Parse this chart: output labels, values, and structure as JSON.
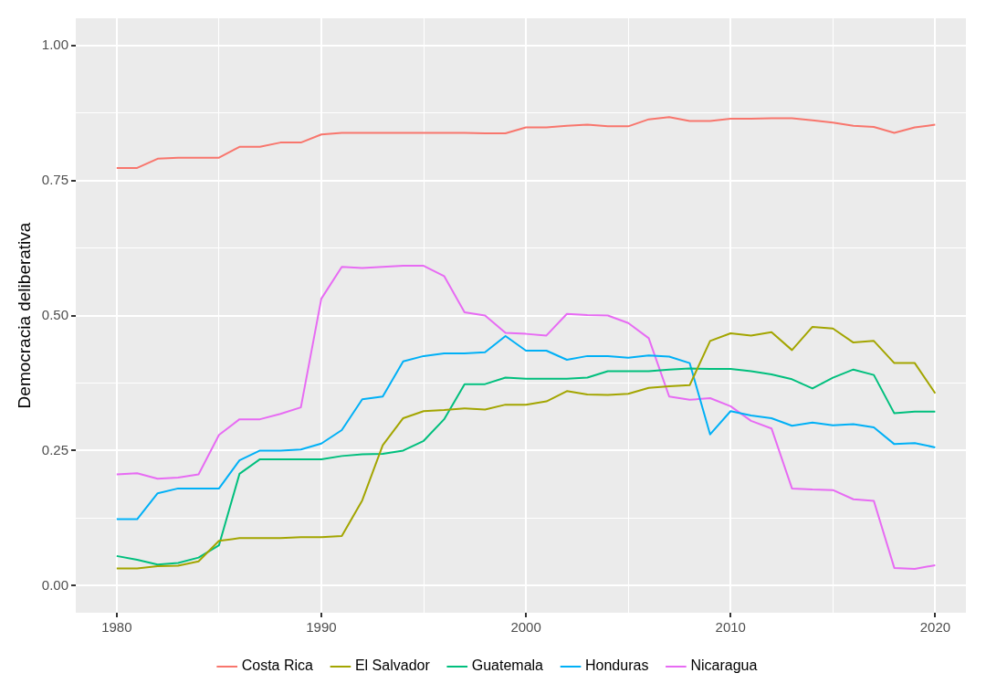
{
  "chart_data": {
    "type": "line",
    "ylabel": "Democracia deliberativa",
    "x": [
      1980,
      1981,
      1982,
      1983,
      1984,
      1985,
      1986,
      1987,
      1988,
      1989,
      1990,
      1991,
      1992,
      1993,
      1994,
      1995,
      1996,
      1997,
      1998,
      1999,
      2000,
      2001,
      2002,
      2003,
      2004,
      2005,
      2006,
      2007,
      2008,
      2009,
      2010,
      2011,
      2012,
      2013,
      2014,
      2015,
      2016,
      2017,
      2018,
      2019,
      2020
    ],
    "xlim": [
      1978,
      2021.5
    ],
    "xticks": [
      1980,
      {
        "value": 1985,
        "label": null
      },
      1990,
      {
        "value": 1995,
        "label": null
      },
      2000,
      {
        "value": 2005,
        "label": null
      },
      2010,
      {
        "value": 2015,
        "label": null
      },
      2020
    ],
    "ylim": [
      -0.05,
      1.05
    ],
    "yticks": [
      {
        "value": 0,
        "label": "0.00"
      },
      {
        "value": 0.125,
        "label": null
      },
      {
        "value": 0.25,
        "label": "0.25"
      },
      {
        "value": 0.375,
        "label": null
      },
      {
        "value": 0.5,
        "label": "0.50"
      },
      {
        "value": 0.625,
        "label": null
      },
      {
        "value": 0.75,
        "label": "0.75"
      },
      {
        "value": 0.875,
        "label": null
      },
      {
        "value": 1,
        "label": "1.00"
      }
    ],
    "grid": true,
    "legend": "bottom",
    "marker": "none",
    "line_style": "solid",
    "series": [
      {
        "name": "Costa Rica",
        "color": "#f8766d",
        "values": [
          0.773,
          0.773,
          0.79,
          0.792,
          0.792,
          0.792,
          0.812,
          0.812,
          0.82,
          0.82,
          0.835,
          0.838,
          0.838,
          0.838,
          0.838,
          0.838,
          0.838,
          0.838,
          0.837,
          0.837,
          0.848,
          0.848,
          0.851,
          0.853,
          0.85,
          0.85,
          0.863,
          0.867,
          0.86,
          0.86,
          0.864,
          0.864,
          0.865,
          0.865,
          0.861,
          0.857,
          0.851,
          0.849,
          0.838,
          0.848,
          0.853
        ]
      },
      {
        "name": "El Salvador",
        "color": "#a3a500",
        "values": [
          0.032,
          0.032,
          0.036,
          0.037,
          0.045,
          0.083,
          0.088,
          0.088,
          0.088,
          0.09,
          0.09,
          0.092,
          0.158,
          0.26,
          0.31,
          0.323,
          0.325,
          0.328,
          0.326,
          0.335,
          0.335,
          0.341,
          0.36,
          0.354,
          0.353,
          0.355,
          0.366,
          0.369,
          0.371,
          0.453,
          0.467,
          0.463,
          0.469,
          0.436,
          0.479,
          0.476,
          0.45,
          0.453,
          0.412,
          0.412,
          0.356
        ]
      },
      {
        "name": "Guatemala",
        "color": "#00bf7d",
        "values": [
          0.055,
          0.048,
          0.039,
          0.042,
          0.052,
          0.075,
          0.207,
          0.234,
          0.234,
          0.234,
          0.234,
          0.24,
          0.243,
          0.244,
          0.25,
          0.268,
          0.308,
          0.373,
          0.373,
          0.385,
          0.383,
          0.383,
          0.383,
          0.385,
          0.397,
          0.397,
          0.397,
          0.4,
          0.402,
          0.401,
          0.401,
          0.397,
          0.391,
          0.382,
          0.365,
          0.385,
          0.4,
          0.39,
          0.319,
          0.322,
          0.322
        ]
      },
      {
        "name": "Honduras",
        "color": "#00b0f6",
        "values": [
          0.123,
          0.123,
          0.171,
          0.18,
          0.18,
          0.18,
          0.232,
          0.25,
          0.25,
          0.252,
          0.263,
          0.288,
          0.345,
          0.35,
          0.415,
          0.425,
          0.43,
          0.43,
          0.432,
          0.462,
          0.435,
          0.435,
          0.418,
          0.425,
          0.425,
          0.422,
          0.426,
          0.424,
          0.412,
          0.28,
          0.323,
          0.315,
          0.31,
          0.296,
          0.302,
          0.297,
          0.299,
          0.293,
          0.262,
          0.264,
          0.256
        ]
      },
      {
        "name": "Nicaragua",
        "color": "#e76bf3",
        "values": [
          0.206,
          0.208,
          0.198,
          0.2,
          0.206,
          0.279,
          0.308,
          0.308,
          0.318,
          0.33,
          0.531,
          0.59,
          0.588,
          0.59,
          0.592,
          0.592,
          0.573,
          0.506,
          0.5,
          0.468,
          0.466,
          0.463,
          0.503,
          0.501,
          0.5,
          0.486,
          0.458,
          0.35,
          0.344,
          0.347,
          0.332,
          0.305,
          0.291,
          0.18,
          0.178,
          0.177,
          0.16,
          0.157,
          0.033,
          0.031,
          0.038
        ]
      }
    ]
  }
}
